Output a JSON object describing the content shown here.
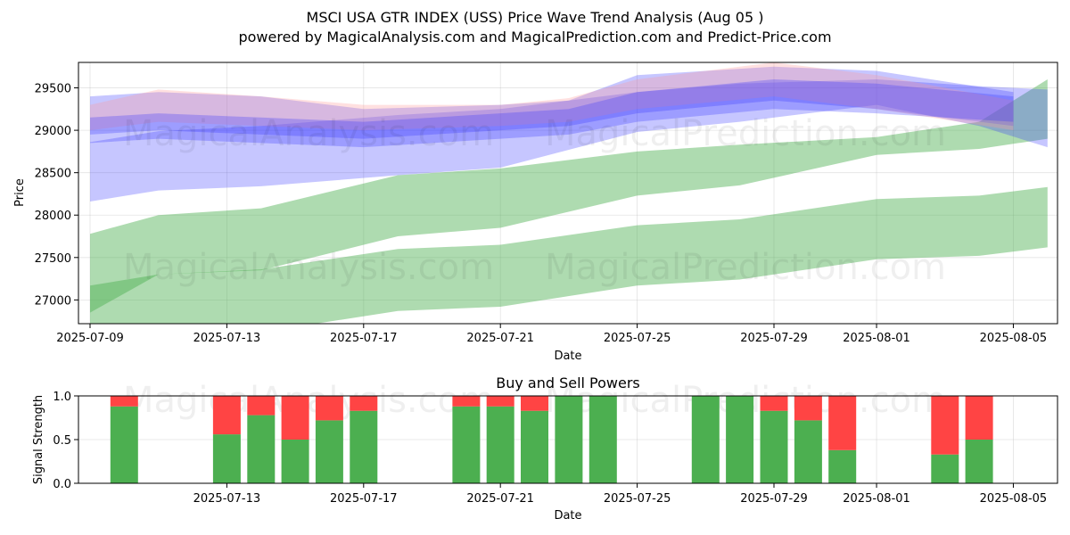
{
  "title_line1": "MSCI USA GTR INDEX (USS) Price Wave Trend Analysis (Aug 05 )",
  "title_line2": "powered by MagicalAnalysis.com and MagicalPrediction.com and Predict-Price.com",
  "watermark": [
    "MagicalAnalysis.com",
    "MagicalPrediction.com"
  ],
  "colors": {
    "green_band": "#4caf50",
    "blue_band": "#3333ff",
    "red_band": "#ff9999",
    "buy": "#4caf50",
    "sell": "#ff4444"
  },
  "chart_data": [
    {
      "type": "area",
      "xlabel": "Date",
      "ylabel": "Price",
      "x_ticks": [
        "2025-07-09",
        "2025-07-13",
        "2025-07-17",
        "2025-07-21",
        "2025-07-25",
        "2025-07-29",
        "2025-08-01",
        "2025-08-05"
      ],
      "y_ticks": [
        27000,
        27500,
        28000,
        28500,
        29000,
        29500
      ],
      "xlim": [
        "2025-07-09",
        "2025-08-06"
      ],
      "ylim": [
        26720,
        29800
      ],
      "grid": true,
      "series": [
        {
          "color": "green",
          "points": [
            {
              "date": "2025-07-09",
              "low": 26850,
              "high": 27780
            },
            {
              "date": "2025-07-11",
              "low": 27300,
              "high": 28000
            },
            {
              "date": "2025-07-14",
              "low": 27350,
              "high": 28080
            },
            {
              "date": "2025-07-18",
              "low": 27750,
              "high": 28470
            },
            {
              "date": "2025-07-21",
              "low": 27850,
              "high": 28550
            },
            {
              "date": "2025-07-25",
              "low": 28230,
              "high": 28750
            },
            {
              "date": "2025-07-28",
              "low": 28350,
              "high": 28830
            },
            {
              "date": "2025-08-01",
              "low": 28710,
              "high": 28920
            },
            {
              "date": "2025-08-04",
              "low": 28780,
              "high": 29100
            },
            {
              "date": "2025-08-06",
              "low": 28900,
              "high": 29600
            }
          ]
        },
        {
          "color": "green",
          "points": [
            {
              "date": "2025-07-09",
              "low": 26620,
              "high": 27170
            },
            {
              "date": "2025-07-11",
              "low": 26620,
              "high": 27300
            },
            {
              "date": "2025-07-14",
              "low": 26620,
              "high": 27360
            },
            {
              "date": "2025-07-18",
              "low": 26870,
              "high": 27600
            },
            {
              "date": "2025-07-21",
              "low": 26920,
              "high": 27650
            },
            {
              "date": "2025-07-25",
              "low": 27170,
              "high": 27880
            },
            {
              "date": "2025-07-28",
              "low": 27240,
              "high": 27950
            },
            {
              "date": "2025-08-01",
              "low": 27480,
              "high": 28190
            },
            {
              "date": "2025-08-04",
              "low": 27520,
              "high": 28230
            },
            {
              "date": "2025-08-06",
              "low": 27620,
              "high": 28330
            }
          ]
        },
        {
          "color": "blue",
          "points": [
            {
              "date": "2025-07-09",
              "low": 28160,
              "high": 28860
            },
            {
              "date": "2025-07-11",
              "low": 28290,
              "high": 28990
            },
            {
              "date": "2025-07-14",
              "low": 28340,
              "high": 29050
            },
            {
              "date": "2025-07-18",
              "low": 28470,
              "high": 29180
            },
            {
              "date": "2025-07-21",
              "low": 28560,
              "high": 29250
            },
            {
              "date": "2025-07-25",
              "low": 28980,
              "high": 29450
            },
            {
              "date": "2025-07-28",
              "low": 29100,
              "high": 29550
            },
            {
              "date": "2025-08-01",
              "low": 29300,
              "high": 29600
            },
            {
              "date": "2025-08-04",
              "low": 29050,
              "high": 29520
            },
            {
              "date": "2025-08-06",
              "low": 28800,
              "high": 29480
            }
          ]
        },
        {
          "color": "blue",
          "points": [
            {
              "date": "2025-07-09",
              "low": 28950,
              "high": 29400
            },
            {
              "date": "2025-07-11",
              "low": 29000,
              "high": 29450
            },
            {
              "date": "2025-07-14",
              "low": 28950,
              "high": 29400
            },
            {
              "date": "2025-07-17",
              "low": 28900,
              "high": 29250
            },
            {
              "date": "2025-07-21",
              "low": 29000,
              "high": 29300
            },
            {
              "date": "2025-07-23",
              "low": 29050,
              "high": 29350
            },
            {
              "date": "2025-07-25",
              "low": 29200,
              "high": 29650
            },
            {
              "date": "2025-07-29",
              "low": 29350,
              "high": 29750
            },
            {
              "date": "2025-08-01",
              "low": 29250,
              "high": 29700
            },
            {
              "date": "2025-08-05",
              "low": 29050,
              "high": 29450
            }
          ]
        },
        {
          "color": "red",
          "points": [
            {
              "date": "2025-07-09",
              "low": 29000,
              "high": 29300
            },
            {
              "date": "2025-07-11",
              "low": 29100,
              "high": 29480
            },
            {
              "date": "2025-07-14",
              "low": 29050,
              "high": 29400
            },
            {
              "date": "2025-07-17",
              "low": 29000,
              "high": 29300
            },
            {
              "date": "2025-07-21",
              "low": 29050,
              "high": 29300
            },
            {
              "date": "2025-07-23",
              "low": 29100,
              "high": 29380
            },
            {
              "date": "2025-07-25",
              "low": 29250,
              "high": 29600
            },
            {
              "date": "2025-07-29",
              "low": 29400,
              "high": 29800
            },
            {
              "date": "2025-08-01",
              "low": 29250,
              "high": 29650
            },
            {
              "date": "2025-08-05",
              "low": 29000,
              "high": 29350
            }
          ]
        },
        {
          "color": "blue",
          "points": [
            {
              "date": "2025-07-09",
              "low": 28850,
              "high": 29150
            },
            {
              "date": "2025-07-11",
              "low": 28900,
              "high": 29200
            },
            {
              "date": "2025-07-14",
              "low": 28850,
              "high": 29150
            },
            {
              "date": "2025-07-17",
              "low": 28800,
              "high": 29100
            },
            {
              "date": "2025-07-21",
              "low": 28900,
              "high": 29200
            },
            {
              "date": "2025-07-23",
              "low": 28950,
              "high": 29250
            },
            {
              "date": "2025-07-25",
              "low": 29100,
              "high": 29450
            },
            {
              "date": "2025-07-29",
              "low": 29250,
              "high": 29600
            },
            {
              "date": "2025-08-01",
              "low": 29200,
              "high": 29550
            },
            {
              "date": "2025-08-05",
              "low": 29100,
              "high": 29400
            }
          ]
        }
      ]
    },
    {
      "type": "bar",
      "title": "Buy and Sell Powers",
      "xlabel": "Date",
      "ylabel": "Signal Strength",
      "x_ticks": [
        "2025-07-13",
        "2025-07-17",
        "2025-07-21",
        "2025-07-25",
        "2025-07-29",
        "2025-08-01",
        "2025-08-05"
      ],
      "y_ticks": [
        "0.0",
        "0.5",
        "1.0"
      ],
      "xlim": [
        "2025-07-09",
        "2025-08-06"
      ],
      "ylim": [
        0,
        1
      ],
      "series": [
        {
          "name": "buy",
          "color": "#4caf50"
        },
        {
          "name": "sell",
          "color": "#ff4444"
        }
      ],
      "bars": [
        {
          "date": "2025-07-10",
          "buy": 0.88
        },
        {
          "date": "2025-07-13",
          "buy": 0.56
        },
        {
          "date": "2025-07-14",
          "buy": 0.78
        },
        {
          "date": "2025-07-15",
          "buy": 0.5
        },
        {
          "date": "2025-07-16",
          "buy": 0.72
        },
        {
          "date": "2025-07-17",
          "buy": 0.83
        },
        {
          "date": "2025-07-20",
          "buy": 0.88
        },
        {
          "date": "2025-07-21",
          "buy": 0.88
        },
        {
          "date": "2025-07-22",
          "buy": 0.83
        },
        {
          "date": "2025-07-23",
          "buy": 1.0
        },
        {
          "date": "2025-07-24",
          "buy": 1.0
        },
        {
          "date": "2025-07-27",
          "buy": 1.0
        },
        {
          "date": "2025-07-28",
          "buy": 1.0
        },
        {
          "date": "2025-07-29",
          "buy": 0.83
        },
        {
          "date": "2025-07-30",
          "buy": 0.72
        },
        {
          "date": "2025-07-31",
          "buy": 0.38
        },
        {
          "date": "2025-08-03",
          "buy": 0.33
        },
        {
          "date": "2025-08-04",
          "buy": 0.5
        }
      ]
    }
  ]
}
